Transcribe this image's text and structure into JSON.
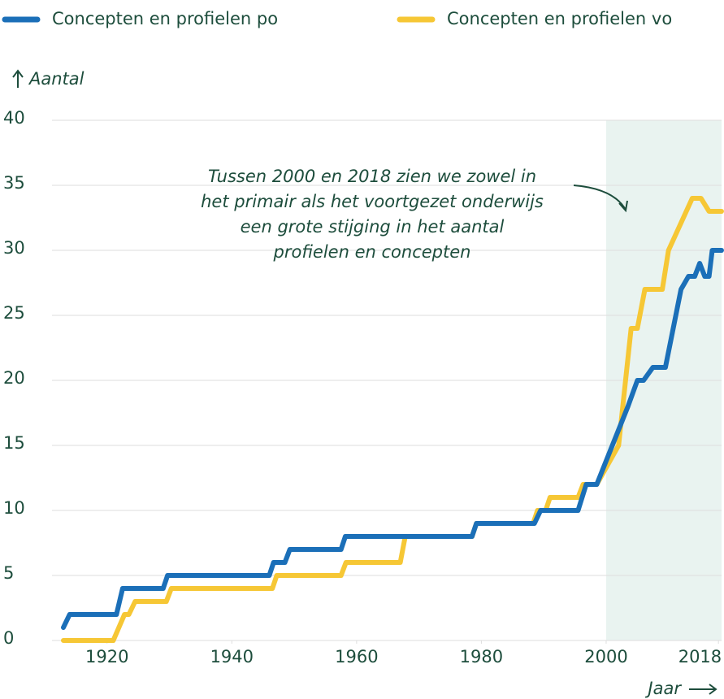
{
  "chart_data": {
    "type": "line",
    "legend_position": "top",
    "y_label": "Aantal",
    "x_label": "Jaar",
    "annotation": [
      "Tussen 2000 en 2018 zien we zowel in",
      "het primair als het voortgezet onderwijs",
      "een grote stijging in het aantal",
      "profielen en concepten"
    ],
    "highlight_range": [
      2000,
      2018.5
    ],
    "highlight_color": "#e9f3f0",
    "xlim": [
      1913,
      2018.5
    ],
    "xticks": [
      1920,
      1940,
      1960,
      1980,
      2000,
      2018
    ],
    "ylim": [
      0,
      40
    ],
    "yticks": [
      0,
      5,
      10,
      15,
      20,
      25,
      30,
      35,
      40
    ],
    "grid": true,
    "series": [
      {
        "name": "Concepten en profielen po",
        "color": "#1b6fb8",
        "x": [
          1913,
          1914,
          1921.5,
          1922.5,
          1929,
          1929.7,
          1946,
          1946.7,
          1948.5,
          1949.3,
          1957.5,
          1958.2,
          1978.5,
          1979.2,
          1988.5,
          1989.5,
          1995.5,
          1996.8,
          1998.5,
          2001,
          2003.5,
          2005,
          2006,
          2007.5,
          2009.5,
          2012,
          2013.2,
          2014.2,
          2015,
          2015.8,
          2016.5,
          2017,
          2018.5
        ],
        "values": [
          1,
          2,
          2,
          4,
          4,
          5,
          5,
          6,
          6,
          7,
          7,
          8,
          8,
          9,
          9,
          10,
          10,
          12,
          12,
          15,
          18,
          20,
          20,
          21,
          21,
          27,
          28,
          28,
          29,
          28,
          28,
          30,
          30
        ]
      },
      {
        "name": "Concepten en profielen vo",
        "color": "#f6c735",
        "x": [
          1913,
          1921,
          1922.8,
          1923.5,
          1924.5,
          1929.5,
          1930.3,
          1946.5,
          1947.2,
          1957.5,
          1958.3,
          1967,
          1967.8,
          1978.5,
          1979.2,
          1988.3,
          1989,
          1990.3,
          1991,
          1995.5,
          1996.3,
          1998.5,
          2002,
          2004,
          2005,
          2006.2,
          2007,
          2009,
          2010,
          2013.8,
          2015.2,
          2016.5,
          2018.5
        ],
        "values": [
          0,
          0,
          2,
          2,
          3,
          3,
          4,
          4,
          5,
          5,
          6,
          6,
          8,
          8,
          9,
          9,
          10,
          10,
          11,
          11,
          12,
          12,
          15,
          24,
          24,
          27,
          27,
          27,
          30,
          34,
          34,
          33,
          33
        ]
      }
    ]
  }
}
